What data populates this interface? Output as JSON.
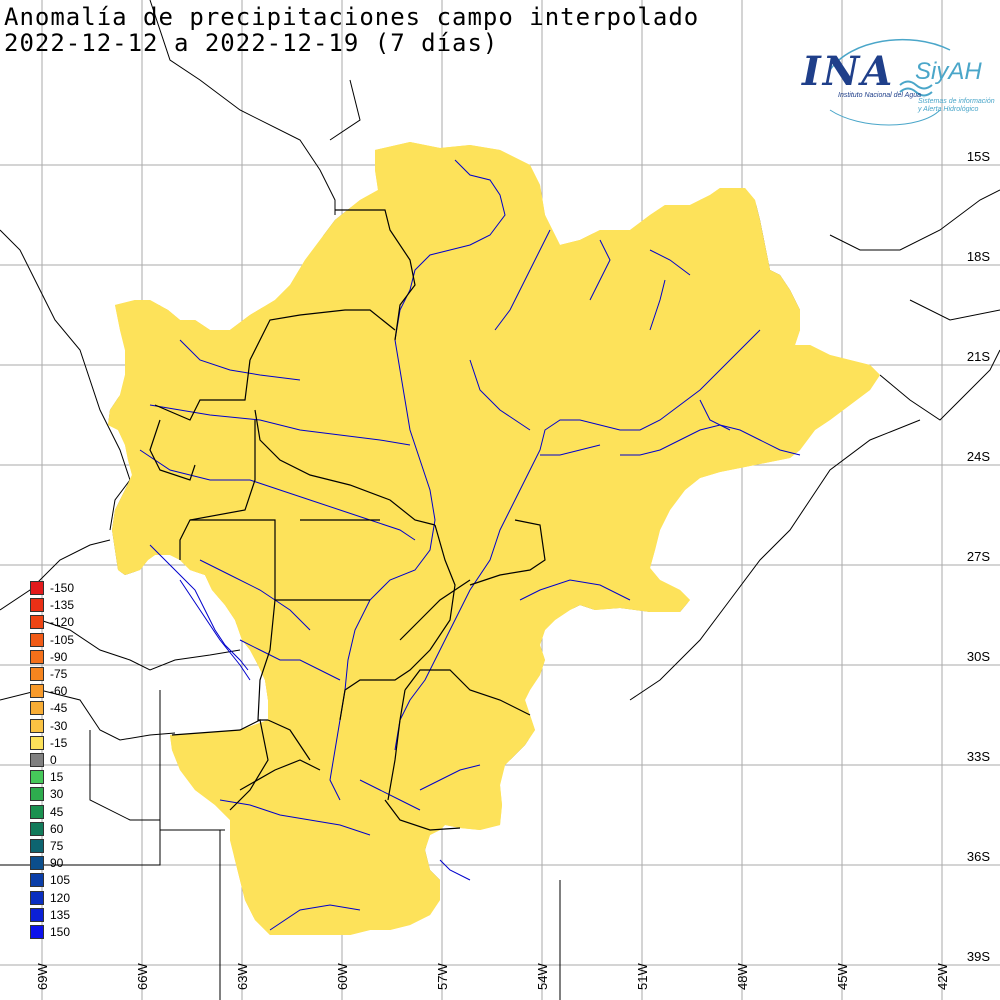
{
  "title_line1": "Anomalía de precipitaciones campo interpolado",
  "title_line2": "2022-12-12 a 2022-12-19 (7 días)",
  "logo": {
    "name": "INA",
    "sub": "Instituto Nacional del Agua",
    "brand": "SiyAH",
    "brand_sub1": "Sistemas de información",
    "brand_sub2": "y Alerta Hidrológico"
  },
  "lat_labels": [
    "15S",
    "18S",
    "21S",
    "24S",
    "27S",
    "30S",
    "33S",
    "36S",
    "39S"
  ],
  "lon_labels": [
    "69W",
    "66W",
    "63W",
    "60W",
    "57W",
    "54W",
    "51W",
    "48W",
    "45W",
    "42W"
  ],
  "legend": {
    "items": [
      {
        "label": "-150",
        "color": "#e31a1c"
      },
      {
        "label": "-135",
        "color": "#ea3016"
      },
      {
        "label": "-120",
        "color": "#ef4514"
      },
      {
        "label": "-105",
        "color": "#f25b16"
      },
      {
        "label": "-90",
        "color": "#f4701a"
      },
      {
        "label": "-75",
        "color": "#f6851f"
      },
      {
        "label": "-60",
        "color": "#f89a2a"
      },
      {
        "label": "-45",
        "color": "#f8ad35"
      },
      {
        "label": "-30",
        "color": "#fac343"
      },
      {
        "label": "-15",
        "color": "#fde25a"
      },
      {
        "label": "0",
        "color": "#808080"
      },
      {
        "label": "15",
        "color": "#46c85a"
      },
      {
        "label": "30",
        "color": "#2eac4e"
      },
      {
        "label": "45",
        "color": "#1a9150"
      },
      {
        "label": "60",
        "color": "#127a5a"
      },
      {
        "label": "75",
        "color": "#0d6470"
      },
      {
        "label": "90",
        "color": "#0b4e8c"
      },
      {
        "label": "105",
        "color": "#0a3ea8"
      },
      {
        "label": "120",
        "color": "#0a2ec0"
      },
      {
        "label": "135",
        "color": "#0b20d6"
      },
      {
        "label": "150",
        "color": "#0d12ec"
      }
    ]
  },
  "colors": {
    "domain_border": "#e41a1c",
    "rivers": "#0000cc",
    "boundaries": "#000000",
    "grid": "#aaaaaa"
  }
}
